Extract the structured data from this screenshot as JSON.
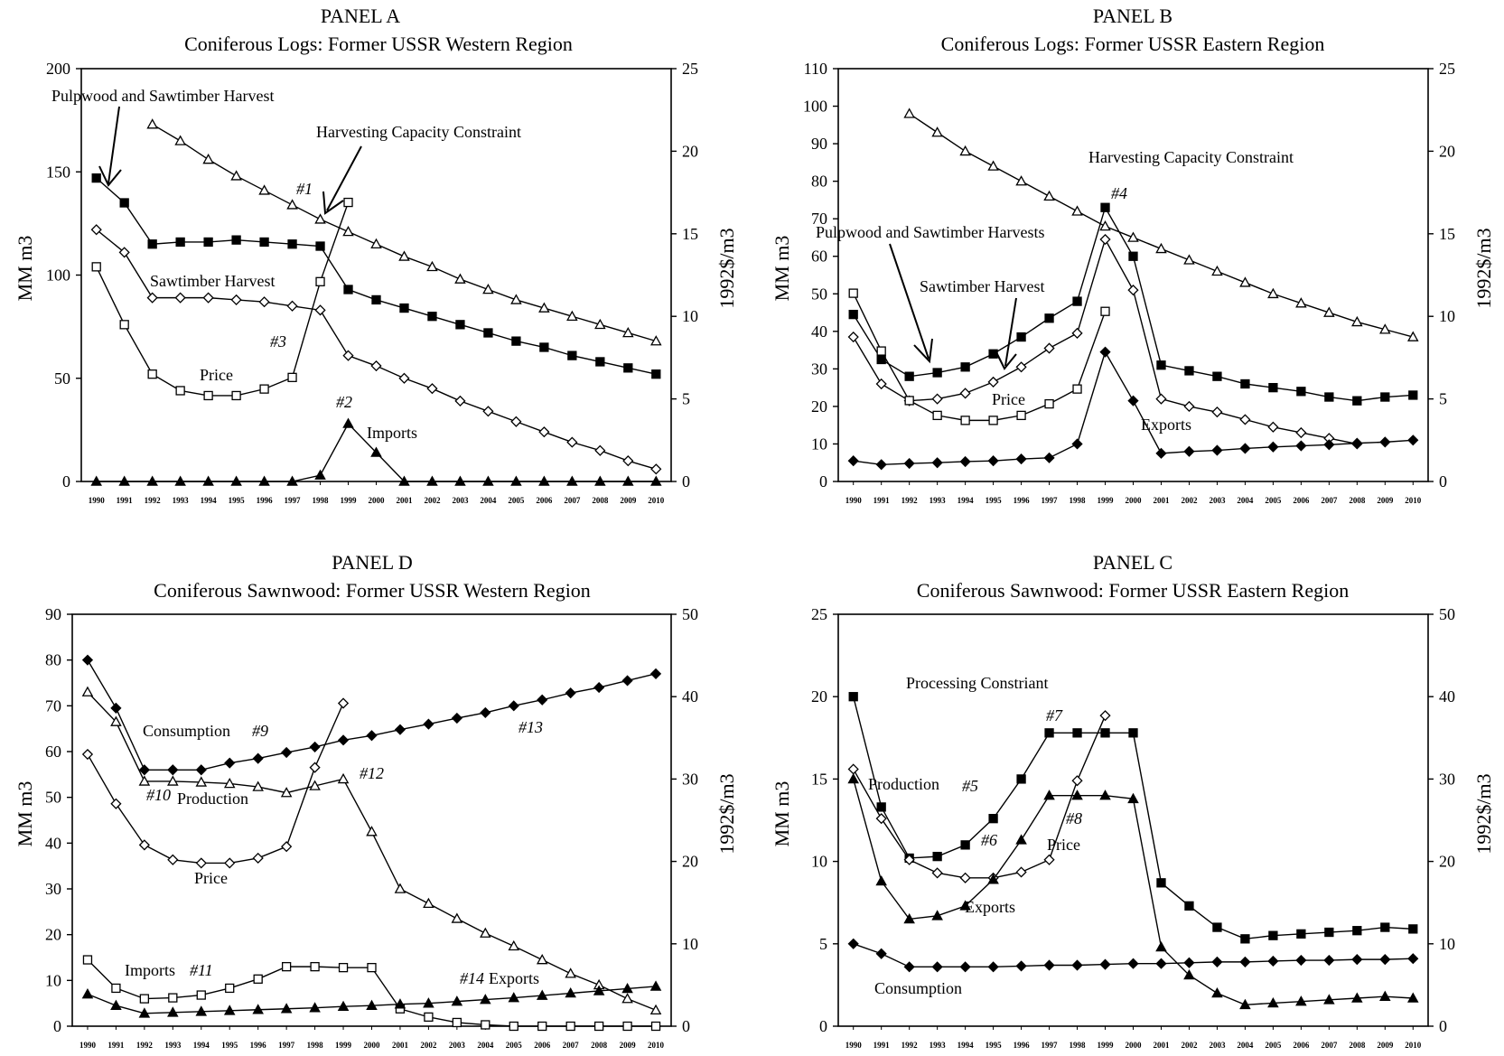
{
  "chart_data": [
    {
      "type": "line",
      "panel": "PANEL A",
      "title": "Coniferous Logs:  Former USSR Western Region",
      "ylabel": "MM m3",
      "y2label": "1992$/m3",
      "ylim": [
        0,
        200
      ],
      "yticks": [
        0,
        50,
        100,
        150,
        200
      ],
      "y2lim": [
        0,
        25
      ],
      "y2ticks": [
        0,
        5,
        10,
        15,
        20,
        25
      ],
      "x": [
        1990,
        1991,
        1992,
        1993,
        1994,
        1995,
        1996,
        1997,
        1998,
        1999,
        2000,
        2001,
        2002,
        2003,
        2004,
        2005,
        2006,
        2007,
        2008,
        2009,
        2010
      ],
      "series": [
        {
          "marker": "open-triangle",
          "axis": "left",
          "values": [
            null,
            null,
            173,
            165,
            156,
            148,
            141,
            134,
            127,
            121,
            115,
            109,
            104,
            98,
            93,
            88,
            84,
            80,
            76,
            72,
            68
          ]
        },
        {
          "marker": "filled-square",
          "axis": "left",
          "values": [
            147,
            135,
            115,
            116,
            116,
            117,
            116,
            115,
            114,
            93,
            88,
            84,
            80,
            76,
            72,
            68,
            65,
            61,
            58,
            55,
            52
          ]
        },
        {
          "marker": "open-diamond",
          "axis": "left",
          "values": [
            122,
            111,
            89,
            89,
            89,
            88,
            87,
            85,
            83,
            61,
            56,
            50,
            45,
            39,
            34,
            29,
            24,
            19,
            15,
            10,
            6
          ]
        },
        {
          "marker": "open-square",
          "axis": "right",
          "values": [
            13.0,
            9.5,
            6.5,
            5.5,
            5.2,
            5.2,
            5.6,
            6.3,
            12.1,
            16.9,
            null,
            null,
            null,
            null,
            null,
            null,
            null,
            null,
            null,
            null,
            null
          ]
        },
        {
          "marker": "filled-triangle",
          "axis": "left",
          "values": [
            0,
            0,
            0,
            0,
            0,
            0,
            0,
            0,
            3,
            28,
            14,
            0,
            0,
            0,
            0,
            0,
            0,
            0,
            0,
            0,
            0
          ]
        }
      ],
      "annotations": [
        "Pulpwood and Sawtimber Harvest",
        "Harvesting Capacity Constraint",
        "#1",
        "Sawtimber Harvest",
        "#3",
        "Price",
        "#2",
        "Imports"
      ]
    },
    {
      "type": "line",
      "panel": "PANEL B",
      "title": "Coniferous Logs:  Former USSR Eastern Region",
      "ylabel": "MM m3",
      "y2label": "1992$/m3",
      "ylim": [
        0,
        110
      ],
      "yticks": [
        0,
        10,
        20,
        30,
        40,
        50,
        60,
        70,
        80,
        90,
        100,
        110
      ],
      "y2lim": [
        0,
        25
      ],
      "y2ticks": [
        0,
        5,
        10,
        15,
        20,
        25
      ],
      "x": [
        1990,
        1991,
        1992,
        1993,
        1994,
        1995,
        1996,
        1997,
        1998,
        1999,
        2000,
        2001,
        2002,
        2003,
        2004,
        2005,
        2006,
        2007,
        2008,
        2009,
        2010
      ],
      "series": [
        {
          "marker": "open-triangle",
          "axis": "left",
          "values": [
            null,
            null,
            98,
            93,
            88,
            84,
            80,
            76,
            72,
            68,
            65,
            62,
            59,
            56,
            53,
            50,
            47.5,
            45,
            42.5,
            40.5,
            38.5
          ]
        },
        {
          "marker": "filled-square",
          "axis": "left",
          "values": [
            44.5,
            32.5,
            28,
            29,
            30.5,
            34,
            38.5,
            43.5,
            48,
            73,
            60,
            31,
            29.5,
            28,
            26,
            25,
            24,
            22.5,
            21.5,
            22.5,
            23
          ]
        },
        {
          "marker": "open-diamond",
          "axis": "left",
          "values": [
            38.5,
            26,
            21.5,
            22,
            23.5,
            26.5,
            30.5,
            35.5,
            39.5,
            64.5,
            51,
            22,
            20,
            18.5,
            16.5,
            14.5,
            13,
            11.5,
            10,
            null,
            null
          ]
        },
        {
          "marker": "open-square",
          "axis": "right",
          "values": [
            11.4,
            7.9,
            4.9,
            4.0,
            3.7,
            3.7,
            4.0,
            4.7,
            5.6,
            10.3,
            null,
            null,
            null,
            null,
            null,
            null,
            null,
            null,
            null,
            null,
            null
          ]
        },
        {
          "marker": "filled-diamond",
          "axis": "left",
          "values": [
            5.5,
            4.5,
            4.8,
            5,
            5.3,
            5.5,
            6,
            6.3,
            10,
            34.5,
            21.5,
            7.5,
            8,
            8.3,
            8.8,
            9.2,
            9.5,
            9.8,
            10.2,
            10.5,
            11
          ]
        }
      ],
      "annotations": [
        "Harvesting Capacity Constraint",
        "#4",
        "Pulpwood and Sawtimber Harvests",
        "Sawtimber Harvest",
        "Price",
        "Exports"
      ]
    },
    {
      "type": "line",
      "panel": "PANEL D",
      "title": "Coniferous Sawnwood:  Former USSR Western Region",
      "ylabel": "MM m3",
      "y2label": "1992$/m3",
      "ylim": [
        0,
        90
      ],
      "yticks": [
        0,
        10,
        20,
        30,
        40,
        50,
        60,
        70,
        80,
        90
      ],
      "y2lim": [
        0,
        50
      ],
      "y2ticks": [
        0,
        10,
        20,
        30,
        40,
        50
      ],
      "x": [
        1990,
        1991,
        1992,
        1993,
        1994,
        1995,
        1996,
        1997,
        1998,
        1999,
        2000,
        2001,
        2002,
        2003,
        2004,
        2005,
        2006,
        2007,
        2008,
        2009,
        2010
      ],
      "series": [
        {
          "marker": "filled-diamond",
          "axis": "left",
          "values": [
            80,
            69.5,
            56,
            56,
            56,
            57.5,
            58.5,
            59.8,
            61,
            62.5,
            63.5,
            64.8,
            66,
            67.3,
            68.5,
            70,
            71.3,
            72.8,
            74,
            75.5,
            77
          ]
        },
        {
          "marker": "open-triangle",
          "axis": "left",
          "values": [
            73,
            66.5,
            53.5,
            53.5,
            53.3,
            53,
            52.3,
            51,
            52.5,
            54,
            42.5,
            30,
            26.8,
            23.5,
            20.3,
            17.5,
            14.5,
            11.5,
            9,
            6,
            3.5
          ]
        },
        {
          "marker": "open-diamond",
          "axis": "right",
          "values": [
            33,
            27,
            22,
            20.2,
            19.8,
            19.8,
            20.4,
            21.8,
            31.4,
            39.2,
            null,
            null,
            null,
            null,
            null,
            null,
            null,
            null,
            null,
            null,
            null
          ]
        },
        {
          "marker": "open-square",
          "axis": "left",
          "values": [
            14.5,
            8.3,
            6,
            6.2,
            6.8,
            8.3,
            10.3,
            13,
            13,
            12.8,
            12.8,
            3.8,
            2,
            0.8,
            0.3,
            0,
            0,
            0,
            0,
            0,
            0
          ]
        },
        {
          "marker": "filled-triangle",
          "axis": "left",
          "values": [
            7,
            4.5,
            2.8,
            3,
            3.2,
            3.4,
            3.6,
            3.8,
            4,
            4.3,
            4.5,
            4.8,
            5,
            5.4,
            5.8,
            6.2,
            6.7,
            7.2,
            7.7,
            8.2,
            8.7
          ]
        }
      ],
      "annotations": [
        "Consumption",
        "#9",
        "#13",
        "#10",
        "Production",
        "#12",
        "Price",
        "Imports",
        "#11",
        "#14",
        "Exports"
      ]
    },
    {
      "type": "line",
      "panel": "PANEL C",
      "title": "Coniferous Sawnwood:  Former USSR Eastern Region",
      "ylabel": "MM m3",
      "y2label": "1992$/m3",
      "ylim": [
        0,
        25
      ],
      "yticks": [
        0,
        5,
        10,
        15,
        20,
        25
      ],
      "y2lim": [
        0,
        50
      ],
      "y2ticks": [
        0,
        10,
        20,
        30,
        40,
        50
      ],
      "x": [
        1990,
        1991,
        1992,
        1993,
        1994,
        1995,
        1996,
        1997,
        1998,
        1999,
        2000,
        2001,
        2002,
        2003,
        2004,
        2005,
        2006,
        2007,
        2008,
        2009,
        2010
      ],
      "series": [
        {
          "marker": "filled-square",
          "axis": "left",
          "values": [
            20,
            13.3,
            10.2,
            10.3,
            11,
            12.6,
            15,
            17.8,
            17.8,
            17.8,
            17.8,
            8.7,
            7.3,
            6,
            5.3,
            5.5,
            5.6,
            5.7,
            5.8,
            6,
            5.9
          ]
        },
        {
          "marker": "open-diamond",
          "axis": "right",
          "values": [
            31.2,
            25.2,
            20.2,
            18.6,
            18,
            18,
            18.7,
            20.2,
            29.8,
            37.7,
            null,
            null,
            null,
            null,
            null,
            null,
            null,
            null,
            null,
            null,
            null
          ]
        },
        {
          "marker": "filled-triangle",
          "axis": "left",
          "values": [
            15,
            8.8,
            6.5,
            6.7,
            7.3,
            8.9,
            11.3,
            14,
            14,
            14,
            13.8,
            4.8,
            3.1,
            2,
            1.3,
            1.4,
            1.5,
            1.6,
            1.7,
            1.8,
            1.7
          ]
        },
        {
          "marker": "filled-diamond",
          "axis": "left",
          "values": [
            5,
            4.4,
            3.6,
            3.6,
            3.6,
            3.6,
            3.65,
            3.7,
            3.7,
            3.75,
            3.8,
            3.8,
            3.85,
            3.9,
            3.9,
            3.95,
            4,
            4,
            4.05,
            4.05,
            4.1
          ]
        }
      ],
      "annotations": [
        "Processing Constriant",
        "#7",
        "Production",
        "#5",
        "#6",
        "#8",
        "Price",
        "Exports",
        "Consumption"
      ]
    }
  ]
}
